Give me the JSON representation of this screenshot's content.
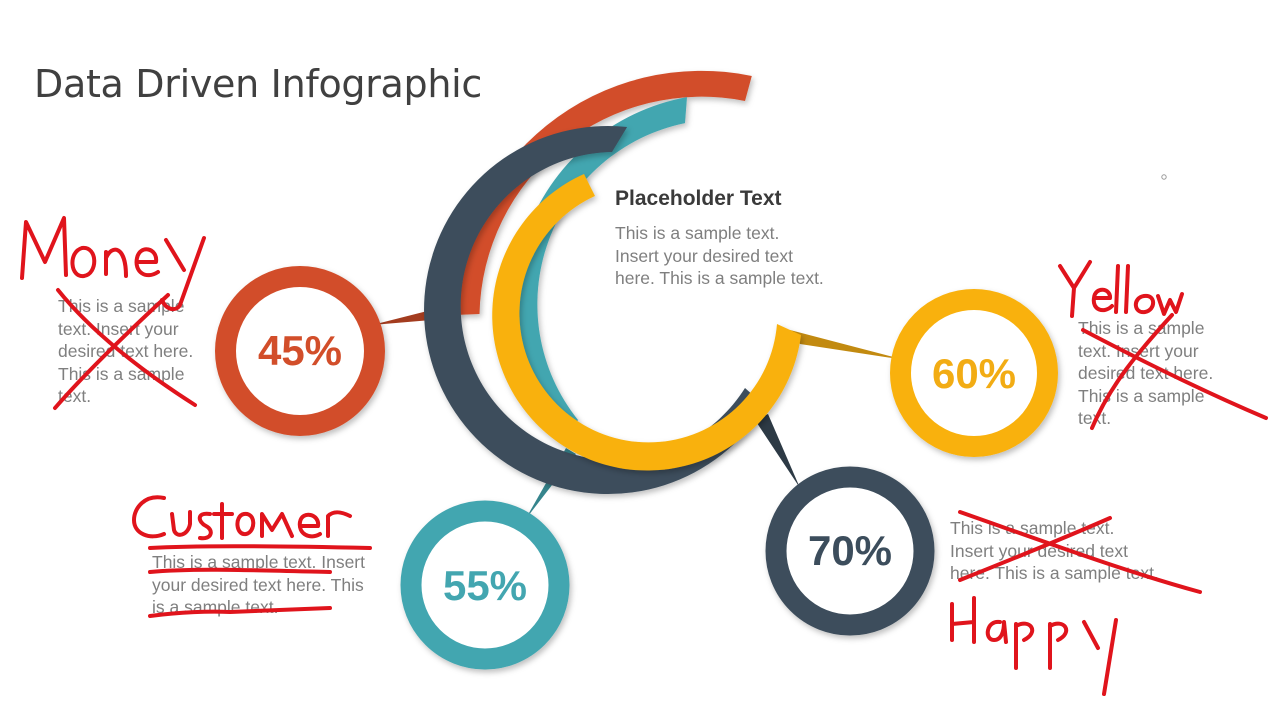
{
  "slide": {
    "title": "Data Driven Infographic",
    "placeholder": {
      "title": "Placeholder Text",
      "body": "This is a sample text.\nInsert your desired text\nhere. This is a sample text."
    },
    "segments": [
      {
        "id": "orange",
        "percent": "45%",
        "color": "#d24e2a",
        "text": "This is a sample\ntext. Insert your\ndesired text here.\nThis is a sample\ntext.",
        "handwritten_label": "Money"
      },
      {
        "id": "teal",
        "percent": "55%",
        "color": "#43a6b0",
        "text": "This is a sample text. Insert\nyour desired text here. This\nis a sample text.",
        "handwritten_label": "Customer"
      },
      {
        "id": "slate",
        "percent": "70%",
        "color": "#3c4d5c",
        "text": "This is a sample text.\nInsert your desired text\nhere. This is a sample text.",
        "handwritten_label": "Happy"
      },
      {
        "id": "yellow",
        "percent": "60%",
        "color": "#f2ac14",
        "text": "This is a sample\ntext. Insert your\ndesired text here.\nThis is a sample\ntext.",
        "handwritten_label": "Yellow"
      }
    ],
    "annotation_color": "#e0141c"
  }
}
